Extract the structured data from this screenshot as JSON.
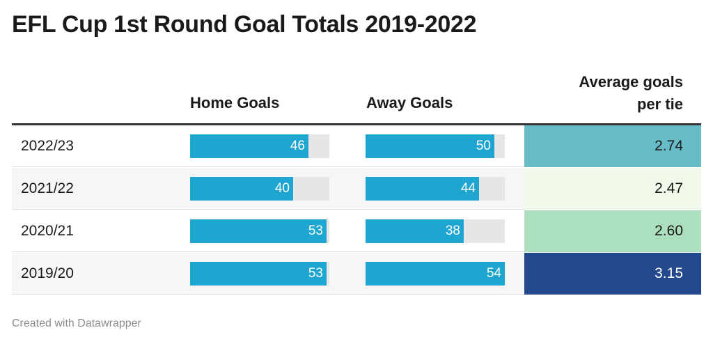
{
  "title": "EFL Cup 1st Round Goal Totals 2019-2022",
  "headers": {
    "home": "Home Goals",
    "away": "Away Goals",
    "avg_line1": "Average goals",
    "avg_line2": "per tie"
  },
  "footer": "Created with Datawrapper",
  "colors": {
    "bar": "#1ea5d0",
    "bar_track": "#e6e6e6"
  },
  "chart_data": {
    "type": "table",
    "columns": [
      "",
      "Home Goals",
      "Away Goals",
      "Average goals per tie"
    ],
    "bar_max": 54,
    "rows": [
      {
        "season": "2022/23",
        "home": 46,
        "away": 50,
        "avg": "2.74",
        "avg_color": "#67bcc8",
        "avg_text_color": "#1a1a1a"
      },
      {
        "season": "2021/22",
        "home": 40,
        "away": 44,
        "avg": "2.47",
        "avg_color": "#f0f9ea",
        "avg_text_color": "#1a1a1a"
      },
      {
        "season": "2020/21",
        "home": 53,
        "away": 38,
        "avg": "2.60",
        "avg_color": "#abdfbd",
        "avg_text_color": "#1a1a1a"
      },
      {
        "season": "2019/20",
        "home": 53,
        "away": 54,
        "avg": "3.15",
        "avg_color": "#24498d",
        "avg_text_color": "#ffffff"
      }
    ]
  }
}
